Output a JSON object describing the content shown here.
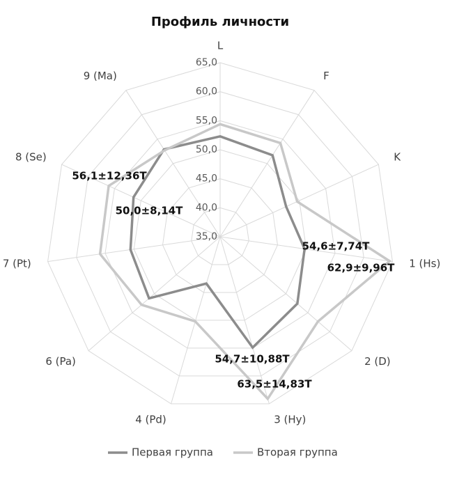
{
  "chart_data": {
    "type": "radar",
    "title": "Профиль личности",
    "categories": [
      "L",
      "F",
      "K",
      "1 (Hs)",
      "2 (D)",
      "3 (Hy)",
      "4 (Pd)",
      "6 (Pa)",
      "7 (Pt)",
      "8 (Se)",
      "9 (Ma)"
    ],
    "series": [
      {
        "name": "Первая группа",
        "color": "#8c8c8c",
        "values": [
          52.3,
          51.7,
          47.5,
          49.7,
          52.6,
          54.9,
          43.4,
          51.2,
          50.6,
          51.4,
          52.9
        ]
      },
      {
        "name": "Вторая группа",
        "color": "#c8c8c8",
        "values": [
          54.4,
          54.2,
          49.6,
          64.5,
          57.3,
          64.1,
          50.2,
          52.9,
          55.9,
          56.1,
          52.7
        ]
      }
    ],
    "ylim": [
      35,
      65
    ],
    "yticks": [
      {
        "value": 35,
        "label": "35,0"
      },
      {
        "value": 40,
        "label": "40,0"
      },
      {
        "value": 45,
        "label": "45,0"
      },
      {
        "value": 50,
        "label": "50,0"
      },
      {
        "value": 55,
        "label": "55,0"
      },
      {
        "value": 60,
        "label": "60,0"
      },
      {
        "value": 65,
        "label": "65,0"
      }
    ],
    "grid": true,
    "legend": "bottom",
    "annotations": [
      "56,1±12,36T",
      "50,0±8,14T",
      "54,6±7,74T",
      "62,9±9,96T",
      "54,7±10,88T",
      "63,5±14,83T"
    ]
  }
}
